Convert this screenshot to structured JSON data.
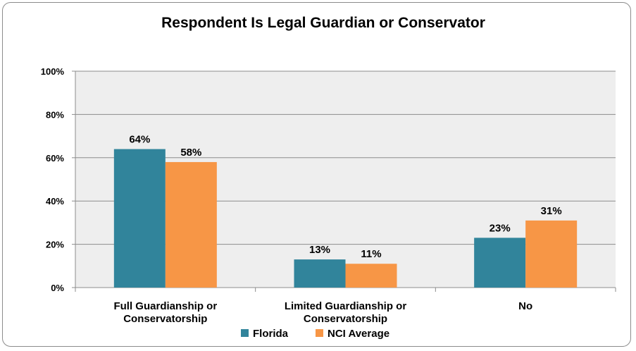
{
  "chart_data": {
    "type": "bar",
    "title": "Respondent Is Legal Guardian or Conservator",
    "categories": [
      [
        "Full Guardianship or",
        "Conservatorship"
      ],
      [
        "Limited Guardianship or",
        "Conservatorship"
      ],
      [
        "No"
      ]
    ],
    "series": [
      {
        "name": "Florida",
        "values": [
          64,
          13,
          23
        ],
        "labels": [
          "64%",
          "13%",
          "23%"
        ],
        "color": "#31849B"
      },
      {
        "name": "NCI Average",
        "values": [
          58,
          11,
          31
        ],
        "labels": [
          "58%",
          "11%",
          "31%"
        ],
        "color": "#F79646"
      }
    ],
    "ylim": [
      0,
      100
    ],
    "yticks": [
      0,
      20,
      40,
      60,
      80,
      100
    ],
    "ytick_labels": [
      "0%",
      "20%",
      "40%",
      "60%",
      "80%",
      "100%"
    ],
    "grid": true,
    "legend": "bottom",
    "plot_background": "#EEEEEE"
  }
}
